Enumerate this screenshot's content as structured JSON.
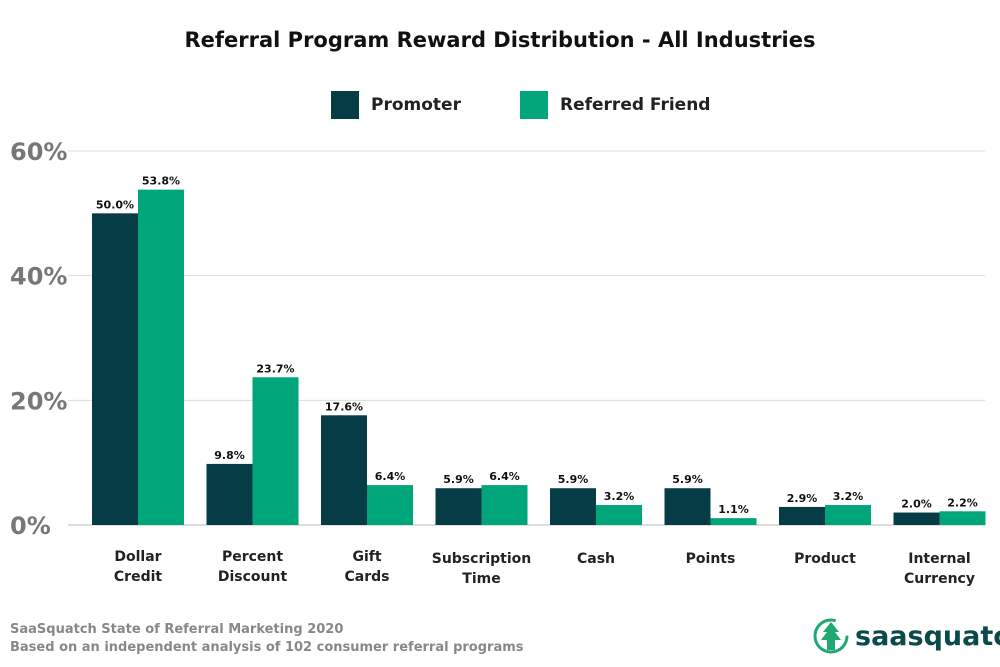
{
  "chart_data": {
    "type": "bar",
    "title": "Referral Program Reward Distribution - All Industries",
    "categories": [
      [
        "Dollar",
        "Credit"
      ],
      [
        "Percent",
        "Discount"
      ],
      [
        "Gift",
        "Cards"
      ],
      [
        "Subscription",
        "Time"
      ],
      [
        "Cash"
      ],
      [
        "Points"
      ],
      [
        "Product"
      ],
      [
        "Internal",
        "Currency"
      ]
    ],
    "series": [
      {
        "name": "Promoter",
        "color": "#063c45",
        "values": [
          50.0,
          9.8,
          17.6,
          5.9,
          5.9,
          5.9,
          2.9,
          2.0
        ],
        "labels": [
          "50.0%",
          "9.8%",
          "17.6%",
          "5.9%",
          "5.9%",
          "5.9%",
          "2.9%",
          "2.0%"
        ]
      },
      {
        "name": "Referred Friend",
        "color": "#00a679",
        "values": [
          53.8,
          23.7,
          6.4,
          6.4,
          3.2,
          1.1,
          3.2,
          2.2
        ],
        "labels": [
          "53.8%",
          "23.7%",
          "6.4%",
          "6.4%",
          "3.2%",
          "1.1%",
          "3.2%",
          "2.2%"
        ]
      }
    ],
    "ylim": [
      0,
      60
    ],
    "yticks": [
      0,
      20,
      40,
      60
    ],
    "ytick_labels": [
      "0%",
      "20%",
      "40%",
      "60%"
    ],
    "grid": true,
    "legend_position": "top"
  },
  "footer": {
    "source_line1": "SaaSquatch State of Referral Marketing 2020",
    "source_line2": "Based on an independent analysis of 102 consumer referral programs",
    "logo_text": "saasquatch"
  }
}
